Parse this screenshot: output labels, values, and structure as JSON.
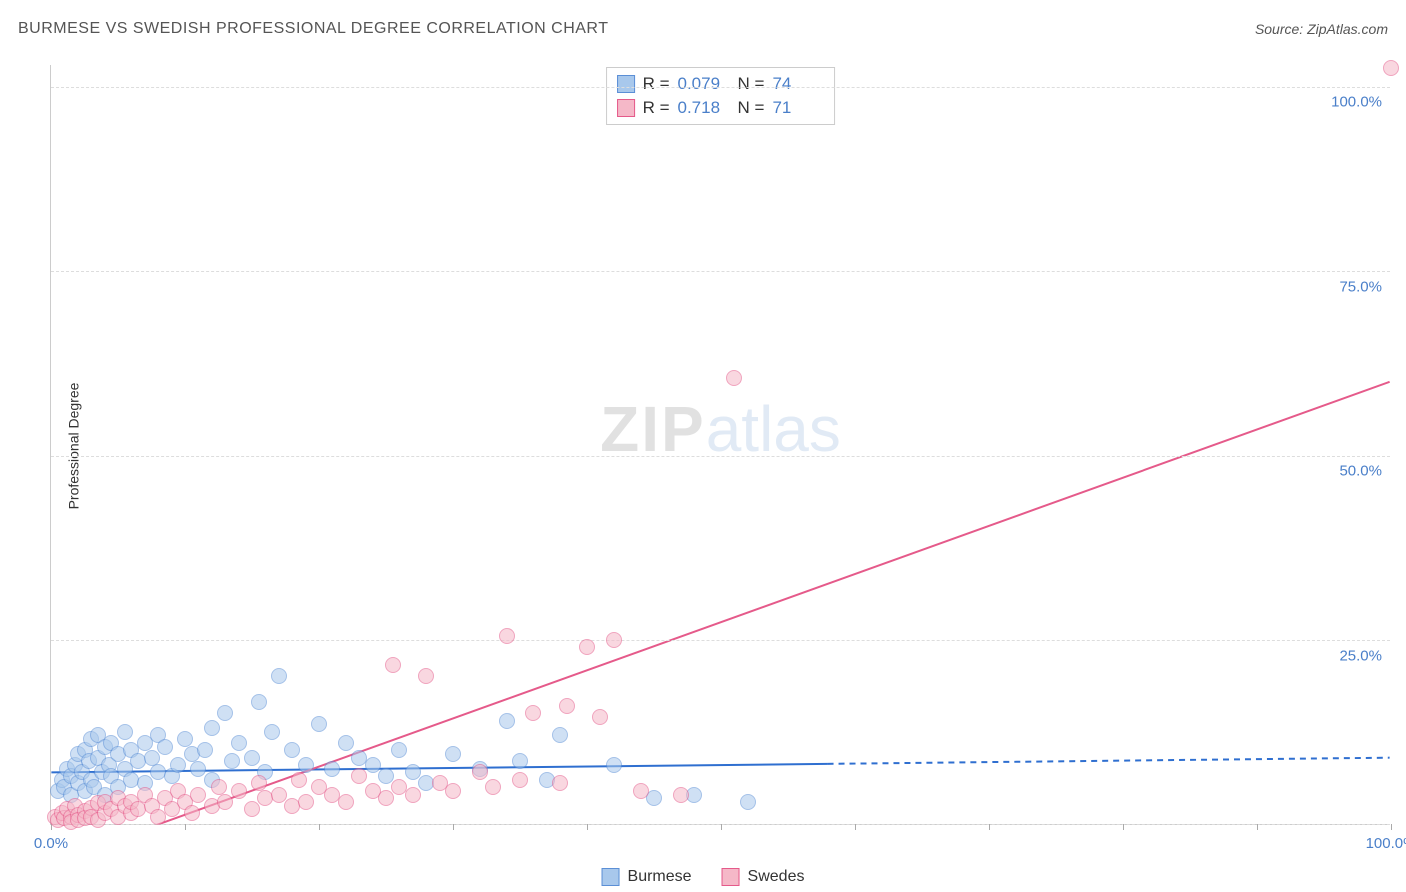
{
  "title": "BURMESE VS SWEDISH PROFESSIONAL DEGREE CORRELATION CHART",
  "source": "Source: ZipAtlas.com",
  "y_axis_label": "Professional Degree",
  "watermark": {
    "zip": "ZIP",
    "atlas": "atlas"
  },
  "chart": {
    "type": "scatter",
    "xlim": [
      0,
      100
    ],
    "ylim": [
      0,
      103
    ],
    "x_ticks": [
      0,
      10,
      20,
      30,
      40,
      50,
      60,
      70,
      80,
      90,
      100
    ],
    "x_tick_labels_shown": {
      "0": "0.0%",
      "100": "100.0%"
    },
    "y_gridlines": [
      0,
      25,
      50,
      75,
      100
    ],
    "y_tick_labels": {
      "25": "25.0%",
      "50": "50.0%",
      "75": "75.0%",
      "100": "100.0%"
    },
    "grid_color": "#dddddd",
    "axis_color": "#cccccc",
    "tick_label_color": "#4a7fc9",
    "tick_label_fontsize": 15,
    "background_color": "#ffffff",
    "marker_radius": 8,
    "marker_border_width": 1.5,
    "series": [
      {
        "name": "Burmese",
        "fill_color": "#a8c8ec",
        "fill_opacity": 0.55,
        "border_color": "#5b8fd6",
        "stats": {
          "R": "0.079",
          "N": "74"
        },
        "trend": {
          "x1": 0,
          "y1": 7.0,
          "x2": 100,
          "y2": 9.0,
          "solid_until_x": 58,
          "color": "#2f6fd0",
          "width": 2
        },
        "points": [
          [
            0.5,
            4.5
          ],
          [
            0.8,
            6.0
          ],
          [
            1.0,
            5.0
          ],
          [
            1.2,
            7.5
          ],
          [
            1.5,
            6.5
          ],
          [
            1.5,
            4.0
          ],
          [
            1.8,
            8.0
          ],
          [
            2.0,
            5.5
          ],
          [
            2.0,
            9.5
          ],
          [
            2.3,
            7.0
          ],
          [
            2.5,
            10.0
          ],
          [
            2.5,
            4.5
          ],
          [
            2.8,
            8.5
          ],
          [
            3.0,
            6.0
          ],
          [
            3.0,
            11.5
          ],
          [
            3.2,
            5.0
          ],
          [
            3.5,
            9.0
          ],
          [
            3.5,
            12.0
          ],
          [
            3.8,
            7.0
          ],
          [
            4.0,
            10.5
          ],
          [
            4.0,
            4.0
          ],
          [
            4.3,
            8.0
          ],
          [
            4.5,
            6.5
          ],
          [
            4.5,
            11.0
          ],
          [
            5.0,
            9.5
          ],
          [
            5.0,
            5.0
          ],
          [
            5.5,
            7.5
          ],
          [
            5.5,
            12.5
          ],
          [
            6.0,
            10.0
          ],
          [
            6.0,
            6.0
          ],
          [
            6.5,
            8.5
          ],
          [
            7.0,
            11.0
          ],
          [
            7.0,
            5.5
          ],
          [
            7.5,
            9.0
          ],
          [
            8.0,
            12.0
          ],
          [
            8.0,
            7.0
          ],
          [
            8.5,
            10.5
          ],
          [
            9.0,
            6.5
          ],
          [
            9.5,
            8.0
          ],
          [
            10.0,
            11.5
          ],
          [
            10.5,
            9.5
          ],
          [
            11.0,
            7.5
          ],
          [
            11.5,
            10.0
          ],
          [
            12.0,
            13.0
          ],
          [
            12.0,
            6.0
          ],
          [
            13.0,
            15.0
          ],
          [
            13.5,
            8.5
          ],
          [
            14.0,
            11.0
          ],
          [
            15.0,
            9.0
          ],
          [
            15.5,
            16.5
          ],
          [
            16.0,
            7.0
          ],
          [
            16.5,
            12.5
          ],
          [
            17.0,
            20.0
          ],
          [
            18.0,
            10.0
          ],
          [
            19.0,
            8.0
          ],
          [
            20.0,
            13.5
          ],
          [
            21.0,
            7.5
          ],
          [
            22.0,
            11.0
          ],
          [
            23.0,
            9.0
          ],
          [
            24.0,
            8.0
          ],
          [
            25.0,
            6.5
          ],
          [
            26.0,
            10.0
          ],
          [
            27.0,
            7.0
          ],
          [
            28.0,
            5.5
          ],
          [
            30.0,
            9.5
          ],
          [
            32.0,
            7.5
          ],
          [
            34.0,
            14.0
          ],
          [
            35.0,
            8.5
          ],
          [
            37.0,
            6.0
          ],
          [
            38.0,
            12.0
          ],
          [
            42.0,
            8.0
          ],
          [
            45.0,
            3.5
          ],
          [
            48.0,
            4.0
          ],
          [
            52.0,
            3.0
          ]
        ]
      },
      {
        "name": "Swedes",
        "fill_color": "#f5b8c8",
        "fill_opacity": 0.55,
        "border_color": "#e55a8a",
        "stats": {
          "R": "0.718",
          "N": "71"
        },
        "trend": {
          "x1": 5,
          "y1": -2.0,
          "x2": 100,
          "y2": 60.0,
          "solid_until_x": 100,
          "color": "#e55a8a",
          "width": 2
        },
        "points": [
          [
            0.3,
            1.0
          ],
          [
            0.5,
            0.5
          ],
          [
            0.8,
            1.5
          ],
          [
            1.0,
            0.8
          ],
          [
            1.2,
            2.0
          ],
          [
            1.5,
            1.0
          ],
          [
            1.5,
            0.3
          ],
          [
            1.8,
            2.5
          ],
          [
            2.0,
            1.2
          ],
          [
            2.0,
            0.5
          ],
          [
            2.5,
            1.8
          ],
          [
            2.5,
            0.8
          ],
          [
            3.0,
            2.2
          ],
          [
            3.0,
            1.0
          ],
          [
            3.5,
            2.8
          ],
          [
            3.5,
            0.5
          ],
          [
            4.0,
            1.5
          ],
          [
            4.0,
            3.0
          ],
          [
            4.5,
            2.0
          ],
          [
            5.0,
            1.0
          ],
          [
            5.0,
            3.5
          ],
          [
            5.5,
            2.5
          ],
          [
            6.0,
            1.5
          ],
          [
            6.0,
            3.0
          ],
          [
            6.5,
            2.0
          ],
          [
            7.0,
            4.0
          ],
          [
            7.5,
            2.5
          ],
          [
            8.0,
            1.0
          ],
          [
            8.5,
            3.5
          ],
          [
            9.0,
            2.0
          ],
          [
            9.5,
            4.5
          ],
          [
            10.0,
            3.0
          ],
          [
            10.5,
            1.5
          ],
          [
            11.0,
            4.0
          ],
          [
            12.0,
            2.5
          ],
          [
            12.5,
            5.0
          ],
          [
            13.0,
            3.0
          ],
          [
            14.0,
            4.5
          ],
          [
            15.0,
            2.0
          ],
          [
            15.5,
            5.5
          ],
          [
            16.0,
            3.5
          ],
          [
            17.0,
            4.0
          ],
          [
            18.0,
            2.5
          ],
          [
            18.5,
            6.0
          ],
          [
            19.0,
            3.0
          ],
          [
            20.0,
            5.0
          ],
          [
            21.0,
            4.0
          ],
          [
            22.0,
            3.0
          ],
          [
            23.0,
            6.5
          ],
          [
            24.0,
            4.5
          ],
          [
            25.0,
            3.5
          ],
          [
            25.5,
            21.5
          ],
          [
            26.0,
            5.0
          ],
          [
            27.0,
            4.0
          ],
          [
            28.0,
            20.0
          ],
          [
            29.0,
            5.5
          ],
          [
            30.0,
            4.5
          ],
          [
            32.0,
            7.0
          ],
          [
            33.0,
            5.0
          ],
          [
            34.0,
            25.5
          ],
          [
            35.0,
            6.0
          ],
          [
            36.0,
            15.0
          ],
          [
            38.0,
            5.5
          ],
          [
            38.5,
            16.0
          ],
          [
            40.0,
            24.0
          ],
          [
            41.0,
            14.5
          ],
          [
            42.0,
            25.0
          ],
          [
            44.0,
            4.5
          ],
          [
            47.0,
            4.0
          ],
          [
            51.0,
            60.5
          ],
          [
            100.0,
            102.5
          ]
        ]
      }
    ]
  },
  "stats_box": {
    "R_label": "R =",
    "N_label": "N ="
  },
  "legend": {
    "items": [
      {
        "label": "Burmese",
        "fill": "#a8c8ec",
        "border": "#5b8fd6"
      },
      {
        "label": "Swedes",
        "fill": "#f5b8c8",
        "border": "#e55a8a"
      }
    ]
  }
}
